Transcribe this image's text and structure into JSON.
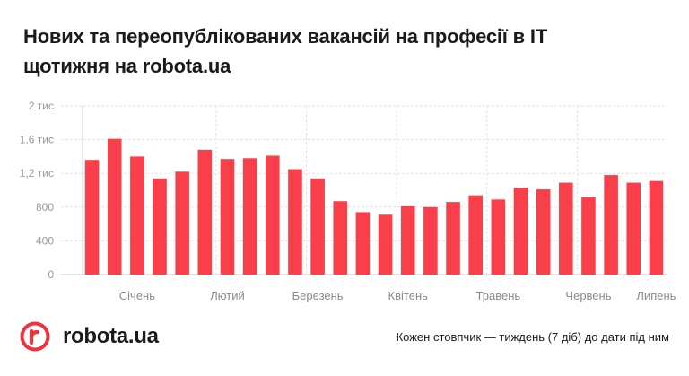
{
  "title_line1": "Нових та переопублікованих вакансій на професії в IT",
  "title_line2": "щотижня на robota.ua",
  "brand": {
    "name": "robota.ua",
    "logo_letter": "r",
    "color": "#f0323c"
  },
  "footnote": "Кожен стовпчик — тиждень (7 діб) до дати під ним",
  "chart_data": {
    "type": "bar",
    "title": "Нових та переопублікованих вакансій на професії в IT щотижня на robota.ua",
    "bar_color": "#f9404a",
    "values": [
      1360,
      1610,
      1400,
      1140,
      1220,
      1480,
      1370,
      1380,
      1410,
      1250,
      1140,
      870,
      740,
      710,
      810,
      800,
      860,
      940,
      890,
      1030,
      1010,
      1090,
      920,
      1180,
      1090,
      1110
    ],
    "month_labels": [
      {
        "label": "Січень",
        "at_bar": 2
      },
      {
        "label": "Лютий",
        "at_bar": 6
      },
      {
        "label": "Березень",
        "at_bar": 10
      },
      {
        "label": "Квітень",
        "at_bar": 14
      },
      {
        "label": "Травень",
        "at_bar": 18
      },
      {
        "label": "Червень",
        "at_bar": 22
      },
      {
        "label": "Липень",
        "at_bar": 25
      }
    ],
    "y_ticks": [
      {
        "value": 0,
        "label": "0"
      },
      {
        "value": 400,
        "label": "400"
      },
      {
        "value": 800,
        "label": "800"
      },
      {
        "value": 1200,
        "label": "1,2 тис"
      },
      {
        "value": 1600,
        "label": "1,6 тис"
      },
      {
        "value": 2000,
        "label": "2 тис"
      }
    ],
    "ylim": [
      0,
      2000
    ],
    "grid": true,
    "month_dividers_after_bars": [
      5,
      9,
      13,
      17,
      21
    ]
  }
}
